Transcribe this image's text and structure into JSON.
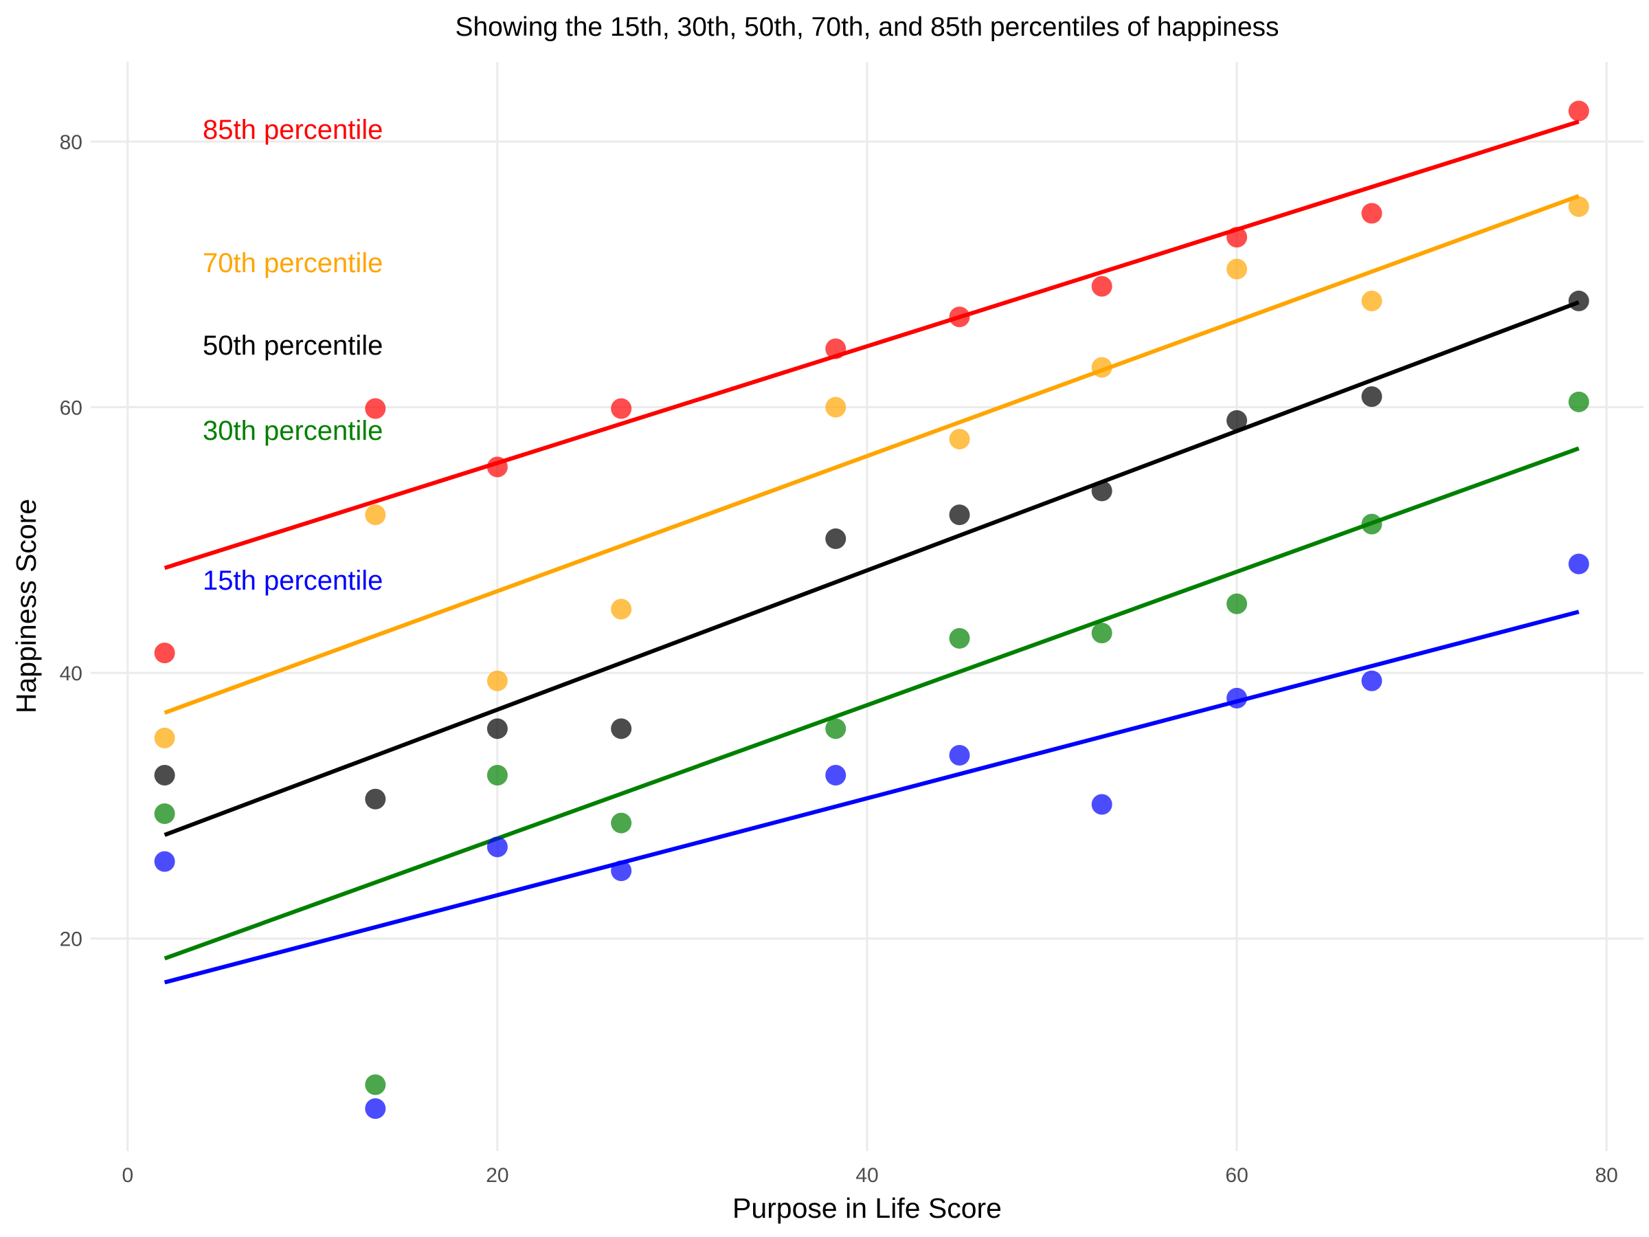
{
  "chart_data": {
    "type": "scatter",
    "title": "Showing the 15th, 30th, 50th, 70th, and 85th percentiles of happiness",
    "xlabel": "Purpose in Life Score",
    "ylabel": "Happiness Score",
    "xlim": [
      -2,
      82
    ],
    "ylim": [
      4,
      86
    ],
    "x_ticks": [
      0,
      20,
      40,
      60,
      80
    ],
    "y_ticks": [
      20,
      40,
      60,
      80
    ],
    "grid": true,
    "x": [
      2,
      13.4,
      20,
      26.7,
      38.3,
      45,
      52.7,
      60,
      67.3,
      78.5
    ],
    "series": [
      {
        "name": "85th percentile",
        "color": "#ff0000",
        "values": [
          41.5,
          59.9,
          55.5,
          59.9,
          64.4,
          66.8,
          69.1,
          72.8,
          74.6,
          82.3
        ],
        "fit": [
          [
            2,
            47.9
          ],
          [
            78.5,
            81.5
          ]
        ]
      },
      {
        "name": "70th percentile",
        "color": "#ffa500",
        "values": [
          35.1,
          51.9,
          39.4,
          44.8,
          60.0,
          57.6,
          63.0,
          70.4,
          68.0,
          75.1
        ],
        "fit": [
          [
            2,
            37.0
          ],
          [
            78.5,
            75.9
          ]
        ]
      },
      {
        "name": "50th percentile",
        "color": "#000000",
        "values": [
          32.3,
          30.5,
          35.8,
          35.8,
          50.1,
          51.9,
          53.7,
          59.0,
          60.8,
          68.0
        ],
        "fit": [
          [
            2,
            27.8
          ],
          [
            78.5,
            67.9
          ]
        ]
      },
      {
        "name": "30th percentile",
        "color": "#008000",
        "values": [
          29.4,
          9.0,
          32.3,
          28.7,
          35.8,
          42.6,
          43.0,
          45.2,
          51.2,
          60.4
        ],
        "fit": [
          [
            2,
            18.5
          ],
          [
            78.5,
            56.9
          ]
        ]
      },
      {
        "name": "15th percentile",
        "color": "#0000ff",
        "values": [
          25.8,
          7.2,
          26.9,
          25.1,
          32.3,
          33.8,
          30.1,
          38.1,
          39.4,
          48.2
        ],
        "fit": [
          [
            2,
            16.7
          ],
          [
            78.5,
            44.6
          ]
        ]
      }
    ]
  }
}
